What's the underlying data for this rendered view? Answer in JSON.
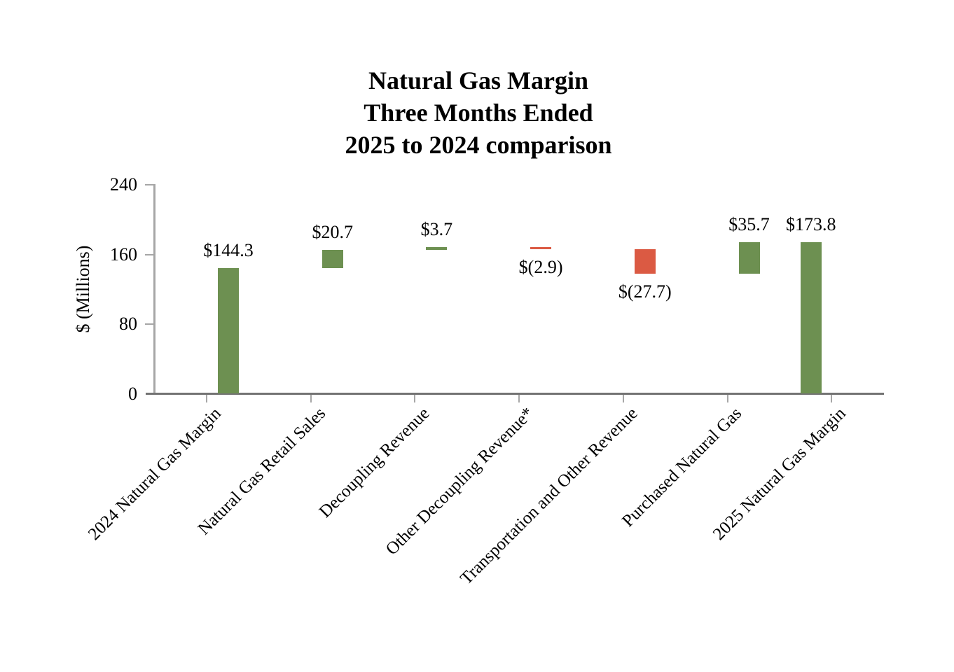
{
  "chart_data": {
    "type": "bar",
    "subtype": "waterfall",
    "title_lines": [
      "Natural Gas Margin",
      "Three Months Ended",
      "2025 to 2024 comparison"
    ],
    "ylabel": "$ (Millions)",
    "ylim": [
      0,
      240
    ],
    "yticks": [
      0,
      80,
      160,
      240
    ],
    "grid": false,
    "legend": "none",
    "categories": [
      "2024 Natural Gas Margin",
      "Natural Gas Retail Sales",
      "Decoupling Revenue",
      "Other Decoupling Revenue*",
      "Transportation and Other Revenue",
      "Purchased Natural Gas",
      "2025 Natural Gas Margin"
    ],
    "bars": [
      {
        "category": "2024 Natural Gas Margin",
        "data_label": "$144.3",
        "value": 144.3,
        "start": 0,
        "end": 144.3,
        "color_key": "increase",
        "label_side": "above"
      },
      {
        "category": "Natural Gas Retail Sales",
        "data_label": "$20.7",
        "value": 20.7,
        "start": 144.3,
        "end": 165.0,
        "color_key": "increase",
        "label_side": "above"
      },
      {
        "category": "Decoupling Revenue",
        "data_label": "$3.7",
        "value": 3.7,
        "start": 165.0,
        "end": 168.7,
        "color_key": "increase",
        "label_side": "above"
      },
      {
        "category": "Other Decoupling Revenue*",
        "data_label": "$(2.9)",
        "value": -2.9,
        "start": 168.7,
        "end": 165.8,
        "color_key": "decrease",
        "label_side": "below"
      },
      {
        "category": "Transportation and Other Revenue",
        "data_label": "$(27.7)",
        "value": -27.7,
        "start": 165.8,
        "end": 138.1,
        "color_key": "decrease",
        "label_side": "below"
      },
      {
        "category": "Purchased Natural Gas",
        "data_label": "$35.7",
        "value": 35.7,
        "start": 138.1,
        "end": 173.8,
        "color_key": "increase",
        "label_side": "above"
      },
      {
        "category": "2025 Natural Gas Margin",
        "data_label": "$173.8",
        "value": 173.8,
        "start": 0,
        "end": 173.8,
        "color_key": "increase",
        "label_side": "above"
      }
    ],
    "colors": {
      "increase": "#6d9051",
      "decrease": "#db5a43",
      "x_axis": "#737373",
      "y_axis": "#a6a6a6",
      "tick": "#a6a6a6",
      "text": "#000000"
    }
  }
}
